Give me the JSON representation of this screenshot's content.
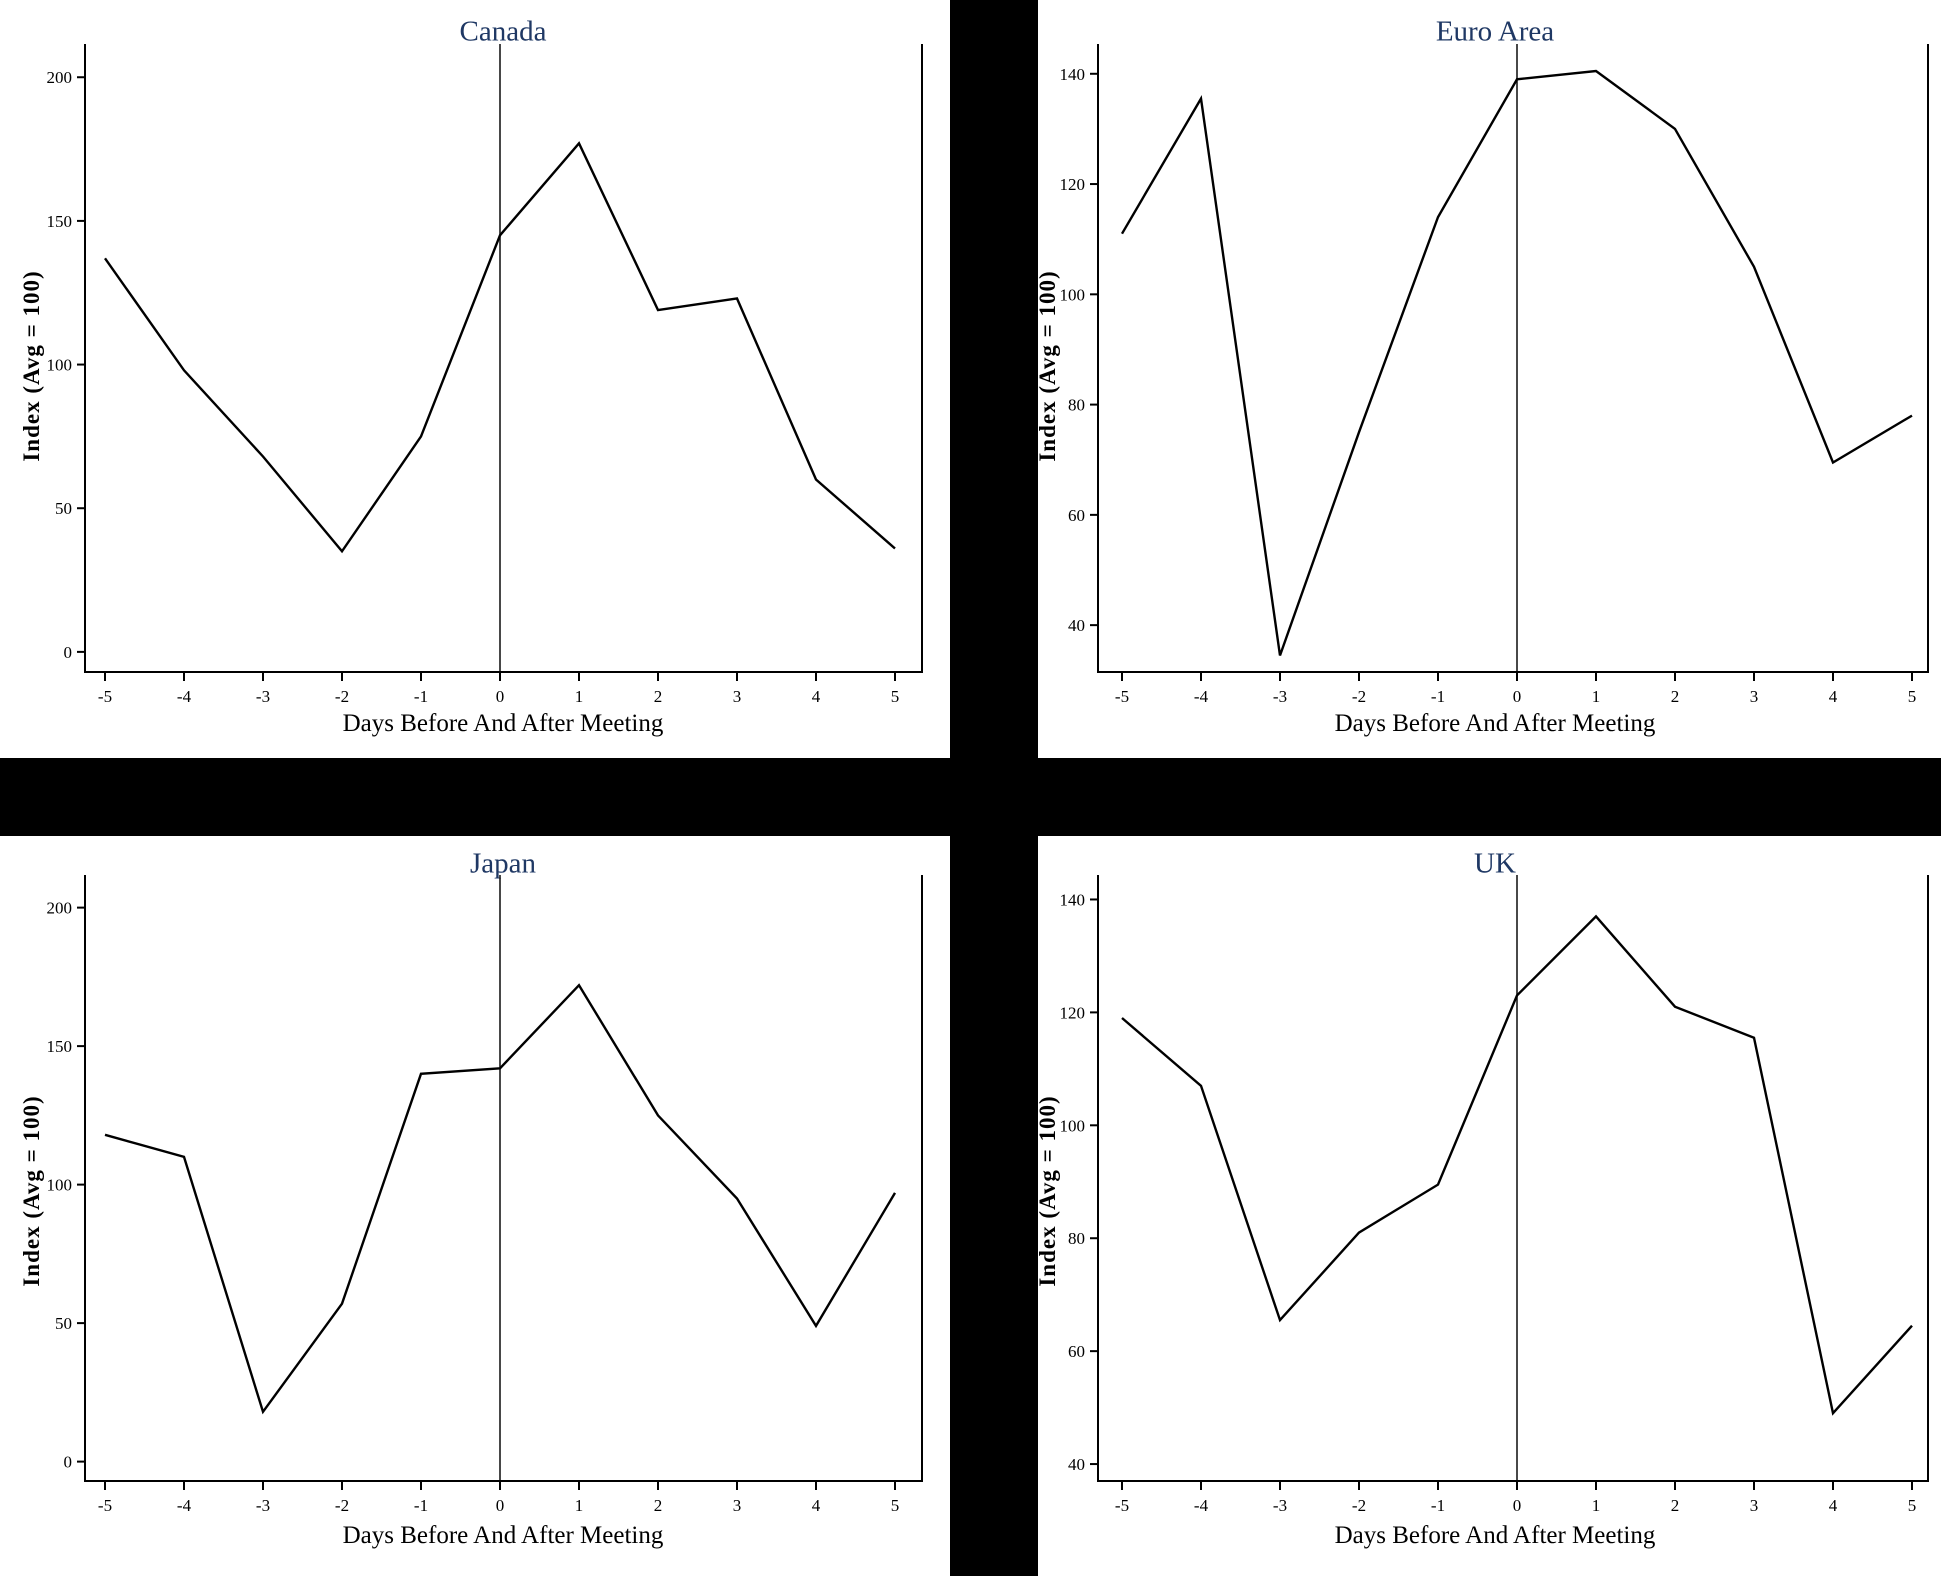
{
  "page": {
    "background": "#ffffff",
    "separator_color": "#000000",
    "title_color": "#1f3864",
    "line_color": "#000000",
    "axis_color": "#000000"
  },
  "chart_data": [
    {
      "type": "line",
      "title": "Canada",
      "xlabel": "Days Before And After Meeting",
      "ylabel": "Index (Avg = 100)",
      "x": [
        -5,
        -4,
        -3,
        -2,
        -1,
        0,
        1,
        2,
        3,
        4,
        5
      ],
      "values": [
        137,
        98,
        68,
        35,
        75,
        145,
        177,
        119,
        123,
        60,
        36
      ],
      "yticks": [
        0,
        50,
        100,
        150,
        200
      ],
      "ylim": [
        -7,
        206
      ],
      "vline_x": 0,
      "grid": false,
      "legend": false
    },
    {
      "type": "line",
      "title": "Euro Area",
      "xlabel": "Days Before And After Meeting",
      "ylabel": "Index (Avg = 100)",
      "x": [
        -5,
        -4,
        -3,
        -2,
        -1,
        0,
        1,
        2,
        3,
        4,
        5
      ],
      "values": [
        111,
        135.5,
        34.5,
        75,
        114,
        139,
        140.5,
        130,
        105,
        69.5,
        78
      ],
      "yticks": [
        40,
        60,
        80,
        100,
        120,
        140
      ],
      "ylim": [
        31.5,
        142.5
      ],
      "vline_x": 0,
      "grid": false,
      "legend": false
    },
    {
      "type": "line",
      "title": "Japan",
      "xlabel": "Days Before And After Meeting",
      "ylabel": "Index (Avg = 100)",
      "x": [
        -5,
        -4,
        -3,
        -2,
        -1,
        0,
        1,
        2,
        3,
        4,
        5
      ],
      "values": [
        118,
        110,
        18,
        57,
        140,
        142,
        172,
        125,
        95,
        49,
        97
      ],
      "yticks": [
        0,
        50,
        100,
        150,
        200
      ],
      "ylim": [
        -7,
        206
      ],
      "vline_x": 0,
      "grid": false,
      "legend": false
    },
    {
      "type": "line",
      "title": "UK",
      "xlabel": "Days Before And After Meeting",
      "ylabel": "Index (Avg = 100)",
      "x": [
        -5,
        -4,
        -3,
        -2,
        -1,
        0,
        1,
        2,
        3,
        4,
        5
      ],
      "values": [
        119,
        107,
        65.5,
        81,
        89.5,
        123,
        137,
        121,
        115.5,
        49,
        64.5
      ],
      "yticks": [
        40,
        60,
        80,
        100,
        120,
        140
      ],
      "ylim": [
        37,
        141.5
      ],
      "vline_x": 0,
      "grid": false,
      "legend": false
    }
  ]
}
